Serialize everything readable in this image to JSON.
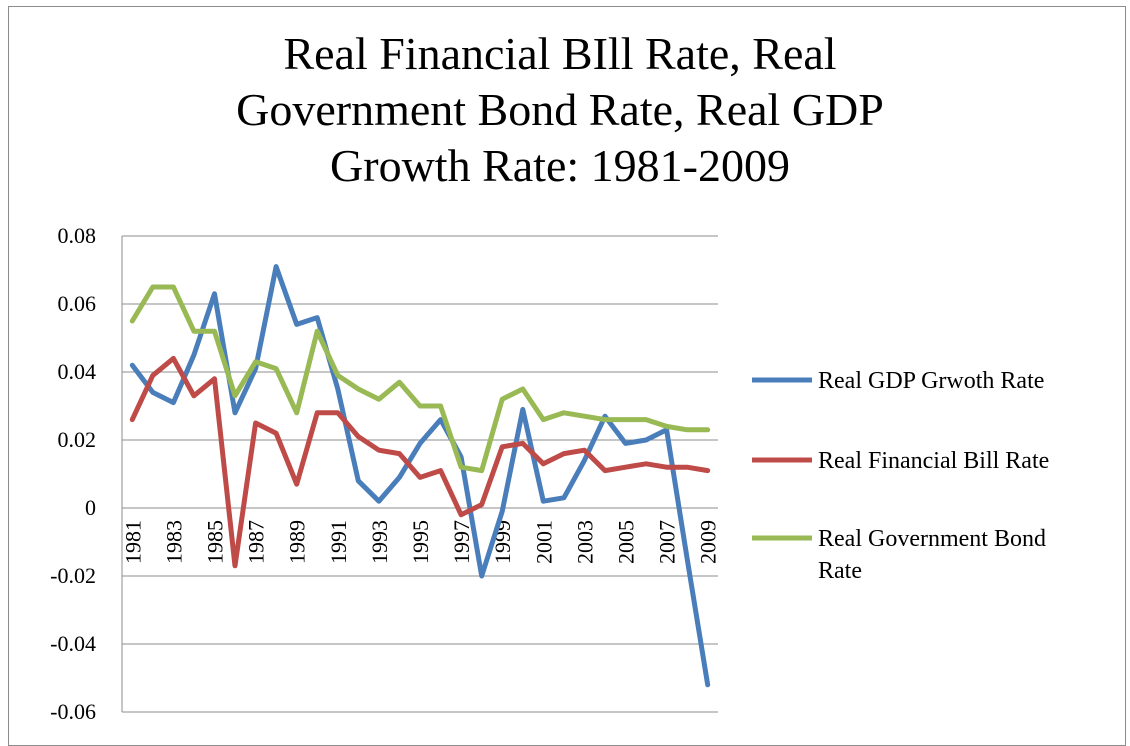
{
  "chart_data": {
    "type": "line",
    "title_lines": [
      "Real Financial BIll Rate, Real",
      "Government Bond Rate, Real GDP",
      "Growth Rate: 1981-2009"
    ],
    "x": [
      1981,
      1982,
      1983,
      1984,
      1985,
      1986,
      1987,
      1988,
      1989,
      1990,
      1991,
      1992,
      1993,
      1994,
      1995,
      1996,
      1997,
      1998,
      1999,
      2000,
      2001,
      2002,
      2003,
      2004,
      2005,
      2006,
      2007,
      2008,
      2009
    ],
    "x_tick_labels": [
      "1981",
      "1983",
      "1985",
      "1987",
      "1989",
      "1991",
      "1993",
      "1995",
      "1997",
      "1999",
      "2001",
      "2003",
      "2005",
      "2007",
      "2009"
    ],
    "ylim": [
      -0.06,
      0.08
    ],
    "y_ticks": [
      0.08,
      0.06,
      0.04,
      0.02,
      0,
      -0.02,
      -0.04,
      -0.06
    ],
    "y_tick_labels": [
      "0.08",
      "0.06",
      "0.04",
      "0.02",
      "0",
      "-0.02",
      "-0.04",
      "-0.06"
    ],
    "grid": true,
    "legend_position": "right",
    "series": [
      {
        "name": "Real GDP Grwoth Rate",
        "color": "#4a7ebb",
        "values": [
          0.042,
          0.034,
          0.031,
          0.045,
          0.063,
          0.028,
          0.041,
          0.071,
          0.054,
          0.056,
          0.035,
          0.008,
          0.002,
          0.009,
          0.019,
          0.026,
          0.015,
          -0.02,
          -0.001,
          0.029,
          0.002,
          0.003,
          0.014,
          0.027,
          0.019,
          0.02,
          0.023,
          -0.015,
          -0.052
        ]
      },
      {
        "name": "Real Financial Bill Rate",
        "color": "#be4b48",
        "values": [
          0.026,
          0.039,
          0.044,
          0.033,
          0.038,
          -0.017,
          0.025,
          0.022,
          0.007,
          0.028,
          0.028,
          0.021,
          0.017,
          0.016,
          0.009,
          0.011,
          -0.002,
          0.001,
          0.018,
          0.019,
          0.013,
          0.016,
          0.017,
          0.011,
          0.012,
          0.013,
          0.012,
          0.012,
          0.011
        ]
      },
      {
        "name": "Real Government Bond Rate",
        "name_lines": [
          "Real Government Bond",
          "Rate"
        ],
        "color": "#98b954",
        "values": [
          0.055,
          0.065,
          0.065,
          0.052,
          0.052,
          0.033,
          0.043,
          0.041,
          0.028,
          0.052,
          0.039,
          0.035,
          0.032,
          0.037,
          0.03,
          0.03,
          0.012,
          0.011,
          0.032,
          0.035,
          0.026,
          0.028,
          0.027,
          0.026,
          0.026,
          0.026,
          0.024,
          0.023,
          0.023
        ]
      }
    ]
  }
}
